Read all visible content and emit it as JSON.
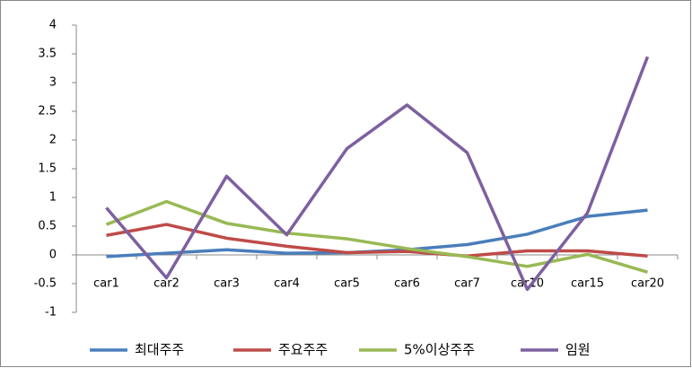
{
  "chart_data": {
    "type": "line",
    "categories": [
      "car1",
      "car2",
      "car3",
      "car4",
      "car5",
      "car6",
      "car7",
      "car10",
      "car15",
      "car20"
    ],
    "series": [
      {
        "name": "최대주주",
        "color": "#4a7ebb",
        "values": [
          -0.03,
          0.03,
          0.09,
          0.03,
          0.04,
          0.09,
          0.18,
          0.36,
          0.67,
          0.78
        ]
      },
      {
        "name": "주요주주",
        "color": "#be4b48",
        "values": [
          0.34,
          0.53,
          0.29,
          0.15,
          0.04,
          0.06,
          -0.02,
          0.07,
          0.07,
          -0.02
        ]
      },
      {
        "name": "5%이상주주",
        "color": "#98b954",
        "values": [
          0.53,
          0.93,
          0.55,
          0.38,
          0.28,
          0.11,
          -0.03,
          -0.2,
          0.01,
          -0.3
        ]
      },
      {
        "name": "임원",
        "color": "#7d60a0",
        "values": [
          0.82,
          -0.4,
          1.37,
          0.35,
          1.85,
          2.61,
          1.78,
          -0.6,
          0.73,
          3.45
        ]
      }
    ],
    "ylim": [
      -1,
      4
    ],
    "yticks": [
      -1,
      -0.5,
      0,
      0.5,
      1,
      1.5,
      2,
      2.5,
      3,
      3.5,
      4
    ],
    "grid": false,
    "legend": "bottom"
  }
}
